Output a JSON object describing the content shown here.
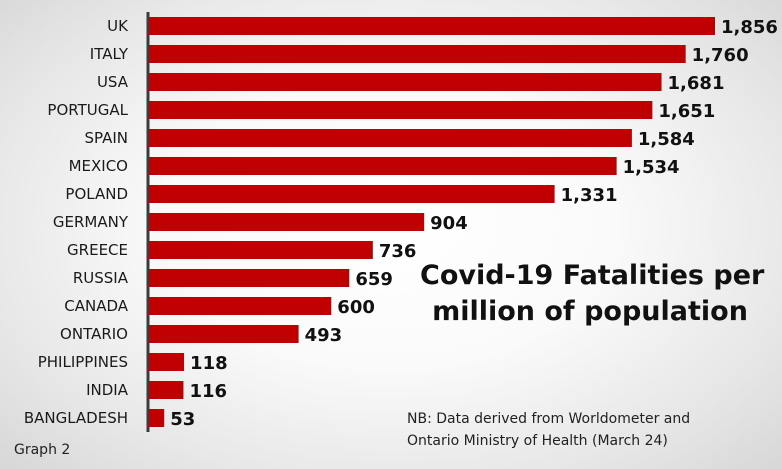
{
  "colors": {
    "bar": "#c00000",
    "axis": "#3c3c3c",
    "text": "#111111"
  },
  "chart_data": {
    "type": "bar",
    "orientation": "horizontal",
    "title_lines": [
      "Covid-19 Fatalities per",
      "million of population"
    ],
    "categories": [
      "UK",
      "ITALY",
      "USA",
      "PORTUGAL",
      "SPAIN",
      "MEXICO",
      "POLAND",
      "GERMANY",
      "GREECE",
      "RUSSIA",
      "CANADA",
      "ONTARIO",
      "PHILIPPINES",
      "INDIA",
      "BANGLADESH"
    ],
    "values": [
      1856,
      1760,
      1681,
      1651,
      1584,
      1534,
      1331,
      904,
      736,
      659,
      600,
      493,
      118,
      116,
      53
    ],
    "value_labels": [
      "1,856",
      "1,760",
      "1,681",
      "1,651",
      "1,584",
      "1,534",
      "1,331",
      "904",
      "736",
      "659",
      "600",
      "493",
      "118",
      "116",
      "53"
    ],
    "xlim": [
      0,
      1856
    ],
    "grid": false,
    "legend": "none"
  },
  "note": {
    "line1": "NB: Data derived from Worldometer and",
    "line2": "Ontario Ministry of Health (March 24)"
  },
  "graph_label": "Graph 2"
}
